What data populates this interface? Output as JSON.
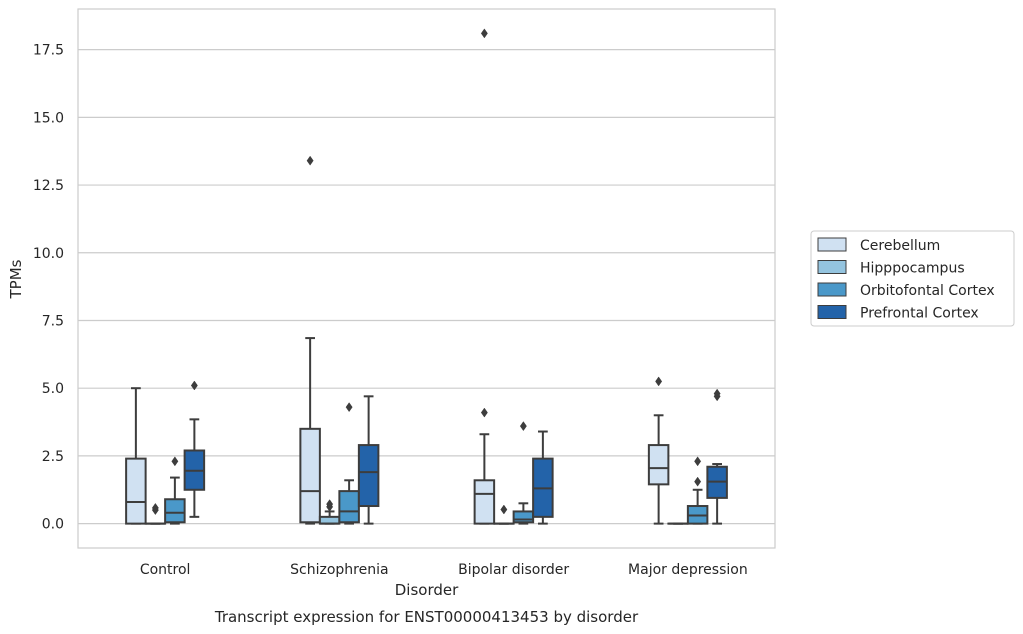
{
  "chart_data": {
    "type": "box",
    "caption": "Transcript expression for ENST00000413453 by disorder",
    "xlabel": "Disorder",
    "ylabel": "TPMs",
    "ylim": [
      -0.9,
      19.0
    ],
    "yticks": [
      0.0,
      2.5,
      5.0,
      7.5,
      10.0,
      12.5,
      15.0,
      17.5
    ],
    "ytick_labels": [
      "0.0",
      "2.5",
      "5.0",
      "7.5",
      "10.0",
      "12.5",
      "15.0",
      "17.5"
    ],
    "grid": "horizontal",
    "legend_placement": "right",
    "categories": [
      "Control",
      "Schizophrenia",
      "Bipolar disorder",
      "Major depression"
    ],
    "series": [
      {
        "name": "Cerebellum",
        "color": "#d0e1f2",
        "boxes": [
          {
            "whislo": 0.0,
            "q1": 0.0,
            "med": 0.8,
            "q3": 2.4,
            "whishi": 5.0,
            "fliers": []
          },
          {
            "whislo": 0.0,
            "q1": 0.05,
            "med": 1.2,
            "q3": 3.5,
            "whishi": 6.85,
            "fliers": [
              13.4
            ]
          },
          {
            "whislo": 0.0,
            "q1": 0.0,
            "med": 1.1,
            "q3": 1.6,
            "whishi": 3.3,
            "fliers": [
              4.1,
              18.1
            ]
          },
          {
            "whislo": 0.0,
            "q1": 1.45,
            "med": 2.05,
            "q3": 2.9,
            "whishi": 4.0,
            "fliers": [
              5.25
            ]
          }
        ]
      },
      {
        "name": "Hipppocampus",
        "color": "#94c4df",
        "boxes": [
          {
            "whislo": 0.0,
            "q1": 0.0,
            "med": 0.0,
            "q3": 0.0,
            "whishi": 0.0,
            "fliers": [
              0.5,
              0.58
            ]
          },
          {
            "whislo": 0.0,
            "q1": 0.0,
            "med": 0.0,
            "q3": 0.25,
            "whishi": 0.45,
            "fliers": [
              0.62,
              0.72
            ]
          },
          {
            "whislo": 0.0,
            "q1": 0.0,
            "med": 0.0,
            "q3": 0.0,
            "whishi": 0.0,
            "fliers": [
              0.52
            ]
          },
          {
            "whislo": 0.0,
            "q1": 0.0,
            "med": 0.0,
            "q3": 0.0,
            "whishi": 0.0,
            "fliers": []
          }
        ]
      },
      {
        "name": "Orbitofontal Cortex",
        "color": "#4a98c9",
        "boxes": [
          {
            "whislo": 0.0,
            "q1": 0.05,
            "med": 0.4,
            "q3": 0.9,
            "whishi": 1.7,
            "fliers": [
              2.3
            ]
          },
          {
            "whislo": 0.0,
            "q1": 0.05,
            "med": 0.45,
            "q3": 1.2,
            "whishi": 1.6,
            "fliers": [
              4.3
            ]
          },
          {
            "whislo": 0.0,
            "q1": 0.05,
            "med": 0.15,
            "q3": 0.45,
            "whishi": 0.75,
            "fliers": [
              3.6
            ]
          },
          {
            "whislo": 0.0,
            "q1": 0.0,
            "med": 0.3,
            "q3": 0.65,
            "whishi": 1.25,
            "fliers": [
              1.55,
              2.3
            ]
          }
        ]
      },
      {
        "name": "Prefrontal Cortex",
        "color": "#2363a9",
        "boxes": [
          {
            "whislo": 0.25,
            "q1": 1.25,
            "med": 1.95,
            "q3": 2.7,
            "whishi": 3.85,
            "fliers": [
              5.1
            ]
          },
          {
            "whislo": 0.0,
            "q1": 0.65,
            "med": 1.9,
            "q3": 2.9,
            "whishi": 4.7,
            "fliers": []
          },
          {
            "whislo": 0.0,
            "q1": 0.25,
            "med": 1.3,
            "q3": 2.4,
            "whishi": 3.4,
            "fliers": []
          },
          {
            "whislo": 0.0,
            "q1": 0.95,
            "med": 1.55,
            "q3": 2.1,
            "whishi": 2.2,
            "fliers": [
              4.7,
              4.8
            ]
          }
        ]
      }
    ],
    "colors": {
      "grid": "#cccccc",
      "frame": "#cccccc",
      "box_edge": "#3d3d3d"
    }
  }
}
